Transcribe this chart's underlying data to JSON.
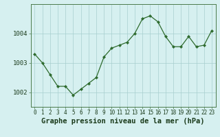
{
  "hours": [
    0,
    1,
    2,
    3,
    4,
    5,
    6,
    7,
    8,
    9,
    10,
    11,
    12,
    13,
    14,
    15,
    16,
    17,
    18,
    19,
    20,
    21,
    22,
    23
  ],
  "pressure": [
    1003.3,
    1003.0,
    1002.6,
    1002.2,
    1002.2,
    1001.9,
    1002.1,
    1002.3,
    1002.5,
    1003.2,
    1003.5,
    1003.6,
    1003.7,
    1004.0,
    1004.5,
    1004.6,
    1004.4,
    1003.9,
    1003.55,
    1003.55,
    1003.9,
    1003.55,
    1003.6,
    1004.1
  ],
  "line_color": "#2d6a2d",
  "marker_color": "#2d6a2d",
  "bg_color": "#d6f0f0",
  "grid_color": "#a8cece",
  "title": "Graphe pression niveau de la mer (hPa)",
  "ylabel_ticks": [
    1002,
    1003,
    1004
  ],
  "ylim": [
    1001.5,
    1005.0
  ],
  "xlim": [
    -0.5,
    23.5
  ],
  "title_color": "#1a3a1a",
  "title_fontsize": 7.5,
  "x_tick_fontsize": 5.5,
  "y_tick_fontsize": 6.5,
  "axis_label_color": "#1a3a1a"
}
